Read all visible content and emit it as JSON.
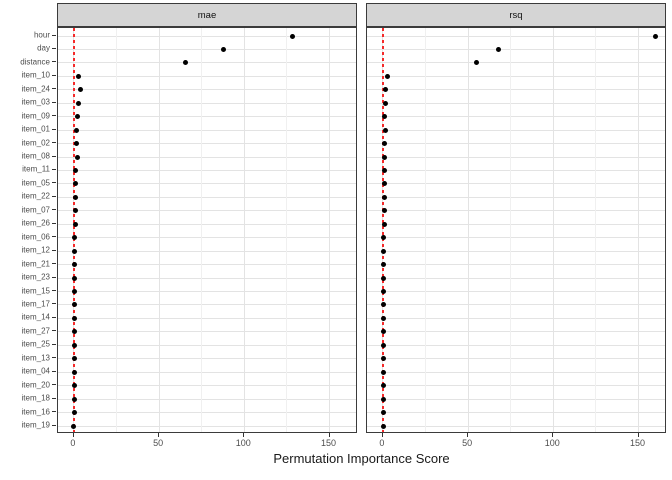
{
  "chart_data": {
    "type": "scatter",
    "title": "",
    "xlabel": "Permutation Importance Score",
    "ylabel": "",
    "legend": false,
    "grid": true,
    "categories": [
      "hour",
      "day",
      "distance",
      "item_10",
      "item_24",
      "item_03",
      "item_09",
      "item_01",
      "item_02",
      "item_08",
      "item_11",
      "item_05",
      "item_22",
      "item_07",
      "item_26",
      "item_06",
      "item_12",
      "item_21",
      "item_23",
      "item_15",
      "item_17",
      "item_14",
      "item_27",
      "item_25",
      "item_13",
      "item_04",
      "item_20",
      "item_18",
      "item_16",
      "item_19"
    ],
    "facets": [
      {
        "label": "mae",
        "values": [
          128,
          88,
          65.5,
          2.5,
          4.0,
          3.0,
          2.0,
          1.8,
          1.8,
          1.9,
          1.2,
          1.2,
          0.7,
          1.0,
          0.7,
          0.5,
          0.5,
          0.6,
          0.5,
          0.5,
          0.6,
          0.5,
          0.6,
          0.6,
          0.6,
          0.6,
          0.5,
          0.1,
          0.1,
          -0.3
        ]
      },
      {
        "label": "rsq",
        "values": [
          160,
          68,
          55,
          2.6,
          1.6,
          1.6,
          1.0,
          1.6,
          0.8,
          0.8,
          0.8,
          0.8,
          0.8,
          0.8,
          0.8,
          0.5,
          0.5,
          0.5,
          0.5,
          0.4,
          0.5,
          0.4,
          0.5,
          0.5,
          0.5,
          0.4,
          0.4,
          0.3,
          0.3,
          0.2
        ]
      }
    ],
    "xlim": [
      -9.3,
      166.7
    ],
    "x_tick_values": [
      0,
      50,
      100,
      150
    ],
    "x_tick_labels": [
      "0",
      "50",
      "100",
      "150"
    ],
    "x_minor_tick_values": [
      25,
      75,
      125
    ],
    "reference_line": {
      "x": 0,
      "style": "dashed",
      "color": "#f52a2a"
    },
    "colors": {
      "point": "#000000",
      "strip_fill": "#d5d5d5",
      "panel_border": "#3b3b3b",
      "grid_major": "#e3e3e3",
      "grid_minor": "#f0f0f0",
      "axis_text": "#4d4d4d"
    }
  }
}
